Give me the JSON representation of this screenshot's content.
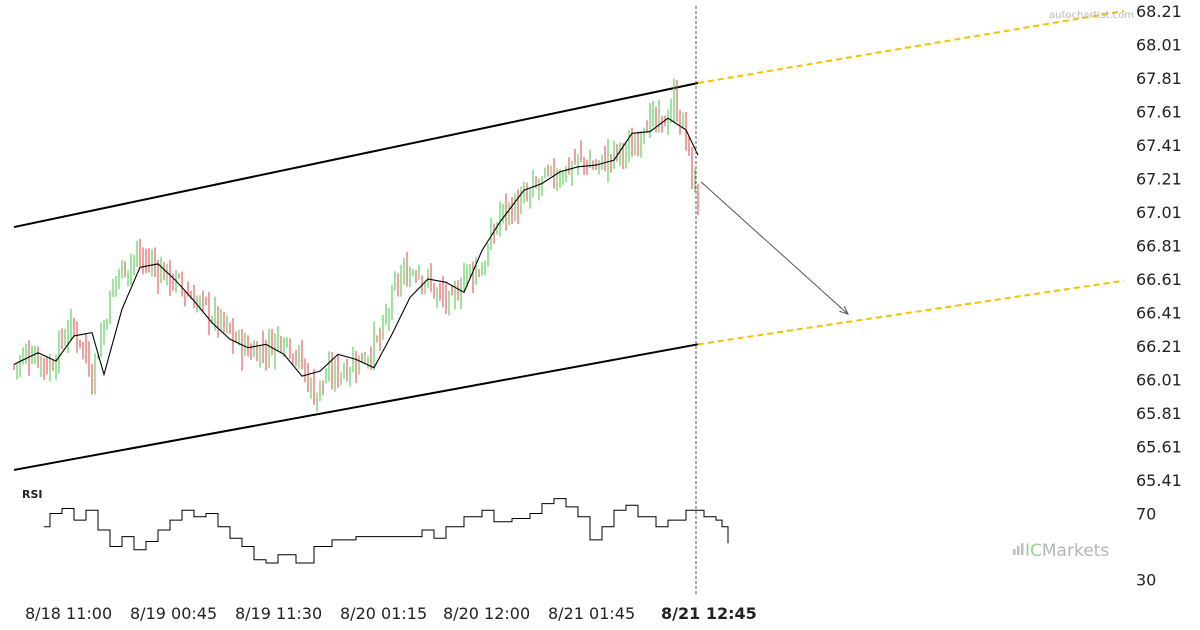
{
  "watermark_top": "autochartist.com",
  "watermark_brand": {
    "prefix": "IC",
    "suffix": "Markets",
    "prefix_color": "#8fd48f",
    "suffix_color": "#b5b5b5"
  },
  "colors": {
    "up_candle": "#3cc83c",
    "down_candle": "#e04040",
    "channel": "#000000",
    "projection": "#f2c200",
    "moving_average": "#000000",
    "rsi_line": "#000000",
    "forecast_arrow": "#555555",
    "current_time_line": "#555555"
  },
  "chart_data": [
    {
      "type": "candlestick",
      "ylim": [
        65.41,
        68.21
      ],
      "y_ticks": [
        "68.21",
        "68.01",
        "67.81",
        "67.61",
        "67.41",
        "67.21",
        "67.01",
        "66.81",
        "66.61",
        "66.41",
        "66.21",
        "66.01",
        "65.81",
        "65.61",
        "65.41"
      ],
      "x_ticks": [
        {
          "label": "8/18 11:00",
          "bold": false
        },
        {
          "label": "8/19 00:45",
          "bold": false
        },
        {
          "label": "8/19 11:30",
          "bold": false
        },
        {
          "label": "8/20 01:15",
          "bold": false
        },
        {
          "label": "8/20 12:00",
          "bold": false
        },
        {
          "label": "8/21 01:45",
          "bold": false
        },
        {
          "label": "8/21 12:45",
          "bold": true
        }
      ],
      "price_path": [
        [
          0,
          66.09
        ],
        [
          6,
          66.18
        ],
        [
          12,
          66.08
        ],
        [
          18,
          66.32
        ],
        [
          22,
          66.26
        ],
        [
          26,
          66.05
        ],
        [
          34,
          66.63
        ],
        [
          40,
          66.74
        ],
        [
          46,
          66.7
        ],
        [
          52,
          66.62
        ],
        [
          58,
          66.52
        ],
        [
          64,
          66.43
        ],
        [
          72,
          66.28
        ],
        [
          78,
          66.18
        ],
        [
          84,
          66.2
        ],
        [
          90,
          66.28
        ],
        [
          96,
          66.1
        ],
        [
          100,
          65.92
        ],
        [
          104,
          66.02
        ],
        [
          110,
          66.08
        ],
        [
          116,
          66.14
        ],
        [
          122,
          66.25
        ],
        [
          128,
          66.6
        ],
        [
          134,
          66.68
        ],
        [
          140,
          66.54
        ],
        [
          146,
          66.45
        ],
        [
          150,
          66.65
        ],
        [
          156,
          66.67
        ],
        [
          162,
          67.0
        ],
        [
          170,
          67.07
        ],
        [
          176,
          67.19
        ],
        [
          182,
          67.24
        ],
        [
          188,
          67.32
        ],
        [
          194,
          67.28
        ],
        [
          200,
          67.35
        ],
        [
          206,
          67.38
        ],
        [
          210,
          67.56
        ],
        [
          216,
          67.52
        ],
        [
          220,
          67.68
        ],
        [
          224,
          67.46
        ],
        [
          226,
          67.2
        ],
        [
          228,
          67.08
        ]
      ],
      "moving_average": [
        [
          0,
          66.1
        ],
        [
          8,
          66.17
        ],
        [
          14,
          66.12
        ],
        [
          20,
          66.27
        ],
        [
          26,
          66.29
        ],
        [
          30,
          66.04
        ],
        [
          36,
          66.43
        ],
        [
          42,
          66.68
        ],
        [
          48,
          66.7
        ],
        [
          54,
          66.6
        ],
        [
          60,
          66.48
        ],
        [
          66,
          66.35
        ],
        [
          72,
          66.25
        ],
        [
          78,
          66.2
        ],
        [
          84,
          66.22
        ],
        [
          90,
          66.16
        ],
        [
          96,
          66.03
        ],
        [
          102,
          66.06
        ],
        [
          108,
          66.16
        ],
        [
          114,
          66.13
        ],
        [
          120,
          66.08
        ],
        [
          126,
          66.28
        ],
        [
          132,
          66.5
        ],
        [
          138,
          66.61
        ],
        [
          144,
          66.59
        ],
        [
          150,
          66.53
        ],
        [
          156,
          66.78
        ],
        [
          162,
          66.95
        ],
        [
          170,
          67.14
        ],
        [
          176,
          67.18
        ],
        [
          182,
          67.25
        ],
        [
          188,
          67.28
        ],
        [
          194,
          67.29
        ],
        [
          200,
          67.32
        ],
        [
          206,
          67.48
        ],
        [
          212,
          67.49
        ],
        [
          218,
          67.57
        ],
        [
          224,
          67.5
        ],
        [
          228,
          67.35
        ]
      ],
      "channel_upper": [
        [
          0,
          66.92
        ],
        [
          228,
          67.78
        ]
      ],
      "channel_lower": [
        [
          0,
          65.47
        ],
        [
          228,
          66.22
        ]
      ],
      "channel_upper_projection": [
        [
          228,
          67.78
        ],
        [
          370,
          68.21
        ]
      ],
      "channel_lower_projection": [
        [
          228,
          66.22
        ],
        [
          370,
          66.6
        ]
      ],
      "forecast_arrow": [
        [
          229,
          67.19
        ],
        [
          278,
          66.4
        ]
      ]
    },
    {
      "type": "line",
      "title": "RSI",
      "y_ticks": [
        "70",
        "30"
      ],
      "ylim": [
        20,
        80
      ],
      "values_path": [
        [
          0,
          62
        ],
        [
          2,
          70
        ],
        [
          6,
          73
        ],
        [
          10,
          66
        ],
        [
          14,
          72
        ],
        [
          18,
          60
        ],
        [
          22,
          50
        ],
        [
          26,
          56
        ],
        [
          30,
          48
        ],
        [
          34,
          53
        ],
        [
          38,
          60
        ],
        [
          42,
          66
        ],
        [
          46,
          72
        ],
        [
          50,
          68
        ],
        [
          54,
          70
        ],
        [
          58,
          62
        ],
        [
          62,
          55
        ],
        [
          66,
          50
        ],
        [
          70,
          42
        ],
        [
          74,
          40
        ],
        [
          78,
          45
        ],
        [
          84,
          40
        ],
        [
          90,
          50
        ],
        [
          96,
          54
        ],
        [
          104,
          56
        ],
        [
          112,
          56
        ],
        [
          120,
          56
        ],
        [
          126,
          60
        ],
        [
          130,
          55
        ],
        [
          134,
          62
        ],
        [
          140,
          68
        ],
        [
          146,
          72
        ],
        [
          150,
          65
        ],
        [
          156,
          67
        ],
        [
          162,
          70
        ],
        [
          166,
          76
        ],
        [
          170,
          79
        ],
        [
          174,
          74
        ],
        [
          178,
          68
        ],
        [
          182,
          54
        ],
        [
          186,
          62
        ],
        [
          190,
          72
        ],
        [
          194,
          75
        ],
        [
          198,
          68
        ],
        [
          204,
          62
        ],
        [
          208,
          66
        ],
        [
          214,
          72
        ],
        [
          220,
          68
        ],
        [
          224,
          66
        ],
        [
          226,
          62
        ],
        [
          228,
          52
        ]
      ]
    }
  ]
}
